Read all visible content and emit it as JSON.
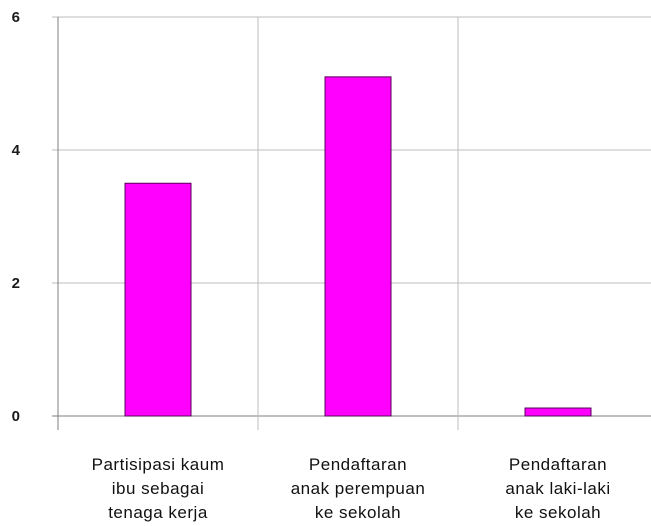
{
  "chart_data": {
    "type": "bar",
    "title": "",
    "xlabel": "",
    "ylabel": "",
    "categories": [
      [
        "Partisipasi kaum",
        "ibu sebagai",
        "tenaga kerja"
      ],
      [
        "Pendaftaran",
        "anak perempuan",
        "ke sekolah"
      ],
      [
        "Pendaftaran",
        "anak laki-laki",
        "ke sekolah"
      ]
    ],
    "values": [
      3.5,
      5.1,
      0.12
    ],
    "ylim": [
      0,
      6
    ],
    "yticks": [
      "0",
      "2",
      "4",
      "6"
    ],
    "grid": true,
    "colors": {
      "bar_fill": "#ff00ff",
      "bar_stroke": "#5a005a",
      "grid": "#bdbdbd",
      "axis": "#7f7f7f"
    }
  }
}
